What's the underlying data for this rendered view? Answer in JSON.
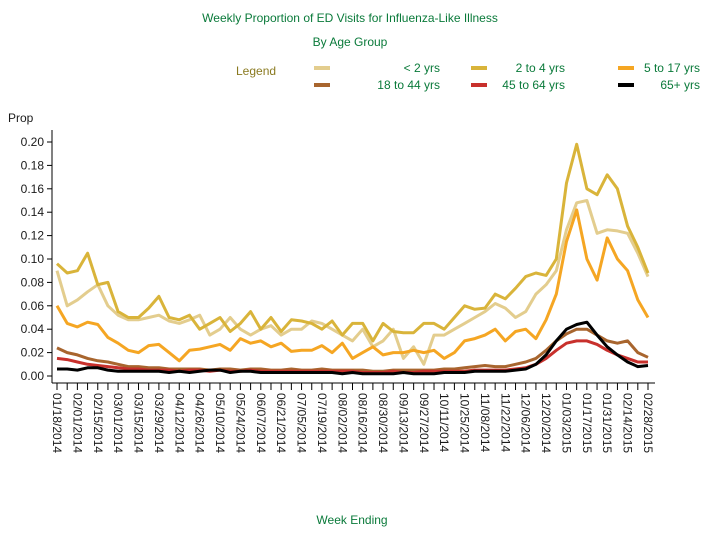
{
  "chart_data": {
    "type": "line",
    "title": "Weekly Proportion of ED Visits for Influenza-Like Illness",
    "subtitle": "By Age Group",
    "legend_title": "Legend",
    "y_label": "Prop",
    "x_label": "Week Ending",
    "categories": [
      "01/18/2014",
      null,
      "02/01/2014",
      null,
      "02/15/2014",
      null,
      "03/01/2014",
      null,
      "03/15/2014",
      null,
      "03/29/2014",
      null,
      "04/12/2014",
      null,
      "04/26/2014",
      null,
      "05/10/2014",
      null,
      "05/24/2014",
      null,
      "06/07/2014",
      null,
      "06/21/2014",
      null,
      "07/05/2014",
      null,
      "07/19/2014",
      null,
      "08/02/2014",
      null,
      "08/16/2014",
      null,
      "08/30/2014",
      null,
      "09/13/2014",
      null,
      "09/27/2014",
      null,
      "10/11/2014",
      null,
      "10/25/2014",
      null,
      "11/08/2014",
      null,
      "11/22/2014",
      null,
      "12/06/2014",
      null,
      "12/20/2014",
      null,
      "01/03/2015",
      null,
      "01/17/2015",
      null,
      "01/31/2015",
      null,
      "02/14/2015",
      null,
      "02/28/2015"
    ],
    "ylim": [
      0,
      0.2
    ],
    "yticks": [
      {
        "value": 0,
        "label": "0.00"
      },
      {
        "value": 0.02,
        "label": "0.02"
      },
      {
        "value": 0.04,
        "label": "0.04"
      },
      {
        "value": 0.06,
        "label": "0.06"
      },
      {
        "value": 0.08,
        "label": "0.08"
      },
      {
        "value": 0.1,
        "label": "0.10"
      },
      {
        "value": 0.12,
        "label": "0.12"
      },
      {
        "value": 0.14,
        "label": "0.14"
      },
      {
        "value": 0.16,
        "label": "0.16"
      },
      {
        "value": 0.18,
        "label": "0.18"
      },
      {
        "value": 0.2,
        "label": "0.20"
      }
    ],
    "series": [
      {
        "name": "< 2 yrs",
        "color": "#e3cd8e",
        "values": [
          0.09,
          0.06,
          0.065,
          0.072,
          0.078,
          0.06,
          0.052,
          0.048,
          0.048,
          0.05,
          0.052,
          0.047,
          0.045,
          0.048,
          0.052,
          0.035,
          0.04,
          0.05,
          0.04,
          0.035,
          0.04,
          0.043,
          0.035,
          0.04,
          0.04,
          0.047,
          0.045,
          0.04,
          0.035,
          0.03,
          0.04,
          0.025,
          0.03,
          0.04,
          0.015,
          0.025,
          0.01,
          0.035,
          0.035,
          0.04,
          0.045,
          0.05,
          0.055,
          0.062,
          0.058,
          0.05,
          0.055,
          0.07,
          0.078,
          0.09,
          0.125,
          0.148,
          0.15,
          0.122,
          0.125,
          0.124,
          0.122,
          0.105,
          0.085
        ]
      },
      {
        "name": "2 to 4 yrs",
        "color": "#d9b43a",
        "values": [
          0.096,
          0.088,
          0.09,
          0.105,
          0.078,
          0.08,
          0.055,
          0.05,
          0.05,
          0.058,
          0.068,
          0.05,
          0.048,
          0.052,
          0.04,
          0.045,
          0.05,
          0.038,
          0.045,
          0.055,
          0.04,
          0.05,
          0.038,
          0.048,
          0.047,
          0.045,
          0.04,
          0.047,
          0.035,
          0.045,
          0.045,
          0.03,
          0.045,
          0.038,
          0.037,
          0.037,
          0.045,
          0.045,
          0.04,
          0.05,
          0.06,
          0.057,
          0.058,
          0.07,
          0.066,
          0.075,
          0.085,
          0.088,
          0.086,
          0.1,
          0.165,
          0.198,
          0.16,
          0.155,
          0.172,
          0.16,
          0.128,
          0.11,
          0.088
        ]
      },
      {
        "name": "5 to 17 yrs",
        "color": "#f5a623",
        "values": [
          0.06,
          0.045,
          0.042,
          0.046,
          0.044,
          0.033,
          0.028,
          0.022,
          0.02,
          0.026,
          0.027,
          0.02,
          0.013,
          0.022,
          0.023,
          0.025,
          0.027,
          0.022,
          0.032,
          0.028,
          0.03,
          0.025,
          0.028,
          0.021,
          0.022,
          0.022,
          0.026,
          0.02,
          0.028,
          0.015,
          0.02,
          0.025,
          0.018,
          0.02,
          0.02,
          0.022,
          0.02,
          0.022,
          0.015,
          0.02,
          0.03,
          0.032,
          0.035,
          0.04,
          0.03,
          0.038,
          0.04,
          0.032,
          0.048,
          0.07,
          0.115,
          0.142,
          0.1,
          0.082,
          0.118,
          0.1,
          0.09,
          0.065,
          0.05
        ]
      },
      {
        "name": "18 to 44 yrs",
        "color": "#a8652e",
        "values": [
          0.024,
          0.02,
          0.018,
          0.015,
          0.013,
          0.012,
          0.01,
          0.008,
          0.008,
          0.007,
          0.007,
          0.006,
          0.006,
          0.006,
          0.006,
          0.005,
          0.006,
          0.006,
          0.005,
          0.006,
          0.006,
          0.005,
          0.005,
          0.006,
          0.005,
          0.005,
          0.006,
          0.005,
          0.005,
          0.005,
          0.005,
          0.004,
          0.004,
          0.005,
          0.005,
          0.005,
          0.005,
          0.005,
          0.006,
          0.006,
          0.007,
          0.008,
          0.009,
          0.008,
          0.008,
          0.01,
          0.012,
          0.015,
          0.022,
          0.03,
          0.036,
          0.04,
          0.04,
          0.035,
          0.03,
          0.028,
          0.03,
          0.02,
          0.016
        ]
      },
      {
        "name": "45 to 64 yrs",
        "color": "#c8302c",
        "values": [
          0.015,
          0.014,
          0.012,
          0.01,
          0.009,
          0.008,
          0.007,
          0.006,
          0.006,
          0.005,
          0.005,
          0.005,
          0.004,
          0.005,
          0.005,
          0.004,
          0.005,
          0.004,
          0.004,
          0.005,
          0.004,
          0.004,
          0.004,
          0.004,
          0.004,
          0.004,
          0.004,
          0.004,
          0.004,
          0.004,
          0.003,
          0.003,
          0.003,
          0.004,
          0.003,
          0.003,
          0.004,
          0.004,
          0.004,
          0.004,
          0.004,
          0.005,
          0.005,
          0.005,
          0.005,
          0.006,
          0.007,
          0.01,
          0.015,
          0.022,
          0.028,
          0.03,
          0.03,
          0.027,
          0.022,
          0.018,
          0.015,
          0.012,
          0.012
        ]
      },
      {
        "name": "65+ yrs",
        "color": "#000000",
        "values": [
          0.006,
          0.006,
          0.005,
          0.007,
          0.007,
          0.005,
          0.004,
          0.004,
          0.004,
          0.004,
          0.004,
          0.003,
          0.004,
          0.003,
          0.004,
          0.005,
          0.005,
          0.003,
          0.004,
          0.004,
          0.003,
          0.003,
          0.003,
          0.003,
          0.003,
          0.003,
          0.003,
          0.003,
          0.002,
          0.003,
          0.002,
          0.002,
          0.002,
          0.002,
          0.003,
          0.002,
          0.002,
          0.002,
          0.003,
          0.003,
          0.003,
          0.004,
          0.004,
          0.004,
          0.004,
          0.005,
          0.006,
          0.01,
          0.018,
          0.03,
          0.04,
          0.044,
          0.046,
          0.035,
          0.025,
          0.018,
          0.012,
          0.008,
          0.009
        ]
      }
    ]
  }
}
